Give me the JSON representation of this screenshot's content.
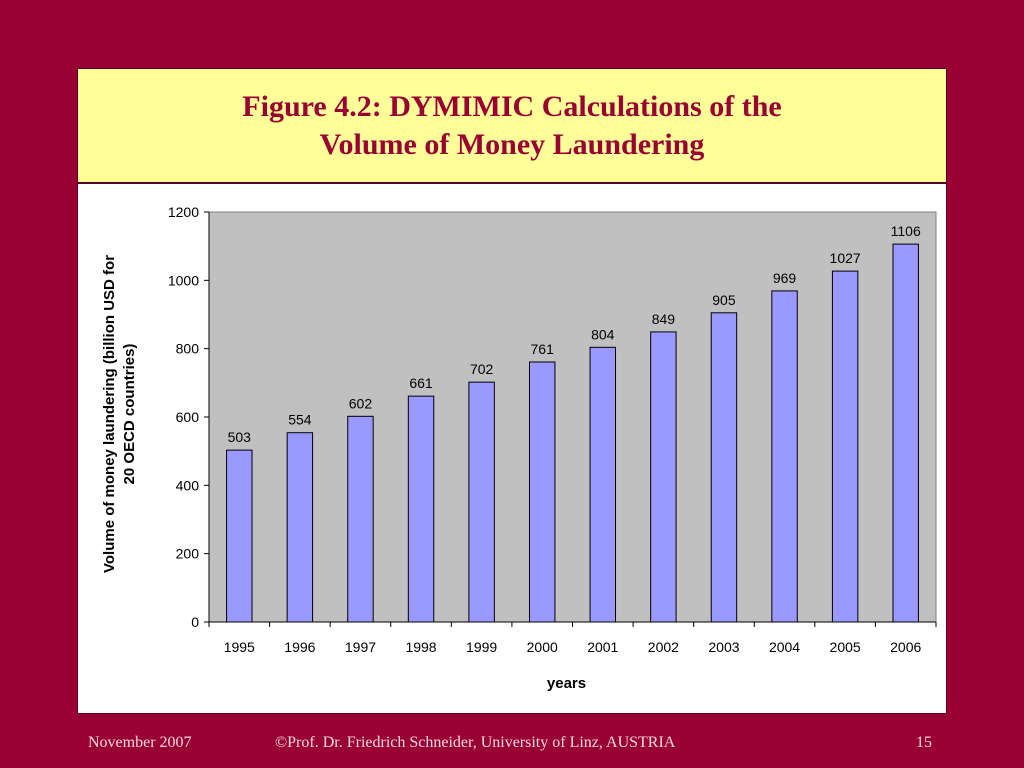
{
  "title": "Figure 4.2: DYMIMIC Calculations of the Volume of Money Laundering",
  "footer": {
    "date": "November 2007",
    "credit": "©Prof. Dr. Friedrich Schneider, University of Linz, AUSTRIA",
    "page": "15"
  },
  "colors": {
    "background": "#990033",
    "title_box": "#ffff99",
    "title_text": "#990033",
    "plot_area": "#c0c0c0",
    "bar": "#9999ff"
  },
  "chart_data": {
    "type": "bar",
    "categories": [
      "1995",
      "1996",
      "1997",
      "1998",
      "1999",
      "2000",
      "2001",
      "2002",
      "2003",
      "2004",
      "2005",
      "2006"
    ],
    "values": [
      503,
      554,
      602,
      661,
      702,
      761,
      804,
      849,
      905,
      969,
      1027,
      1106
    ],
    "xlabel": "years",
    "ylabel": "Volume of money laundering (billion USD for 20 OECD countries)",
    "ylabel_lines": [
      "Volume of money laundering (billion USD for",
      "20 OECD countries)"
    ],
    "ylim": [
      0,
      1200
    ],
    "yticks": [
      0,
      200,
      400,
      600,
      800,
      1000,
      1200
    ],
    "data_labels": true,
    "grid": false,
    "legend": false
  }
}
